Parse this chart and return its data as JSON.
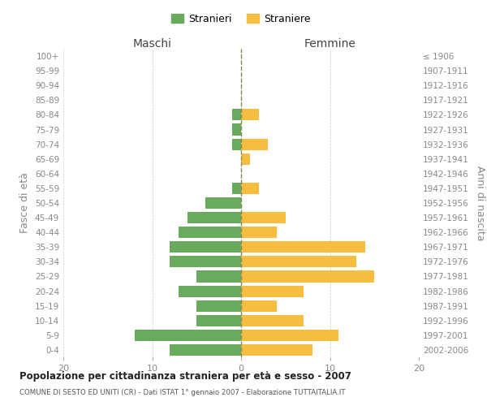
{
  "age_groups": [
    "0-4",
    "5-9",
    "10-14",
    "15-19",
    "20-24",
    "25-29",
    "30-34",
    "35-39",
    "40-44",
    "45-49",
    "50-54",
    "55-59",
    "60-64",
    "65-69",
    "70-74",
    "75-79",
    "80-84",
    "85-89",
    "90-94",
    "95-99",
    "100+"
  ],
  "birth_years": [
    "2002-2006",
    "1997-2001",
    "1992-1996",
    "1987-1991",
    "1982-1986",
    "1977-1981",
    "1972-1976",
    "1967-1971",
    "1962-1966",
    "1957-1961",
    "1952-1956",
    "1947-1951",
    "1942-1946",
    "1937-1941",
    "1932-1936",
    "1927-1931",
    "1922-1926",
    "1917-1921",
    "1912-1916",
    "1907-1911",
    "≤ 1906"
  ],
  "maschi": [
    8,
    12,
    5,
    5,
    7,
    5,
    8,
    8,
    7,
    6,
    4,
    1,
    0,
    0,
    1,
    1,
    1,
    0,
    0,
    0,
    0
  ],
  "femmine": [
    8,
    11,
    7,
    4,
    7,
    15,
    13,
    14,
    4,
    5,
    0,
    2,
    0,
    1,
    3,
    0,
    2,
    0,
    0,
    0,
    0
  ],
  "maschi_color": "#6aaa5f",
  "femmine_color": "#f5be41",
  "background_color": "#ffffff",
  "grid_color": "#cccccc",
  "title": "Popolazione per cittadinanza straniera per età e sesso - 2007",
  "subtitle": "COMUNE DI SESTO ED UNITI (CR) - Dati ISTAT 1° gennaio 2007 - Elaborazione TUTTAITALIA.IT",
  "xlabel_left": "Maschi",
  "xlabel_right": "Femmine",
  "ylabel_left": "Fasce di età",
  "ylabel_right": "Anni di nascita",
  "legend_stranieri": "Stranieri",
  "legend_straniere": "Straniere",
  "xlim": 20
}
